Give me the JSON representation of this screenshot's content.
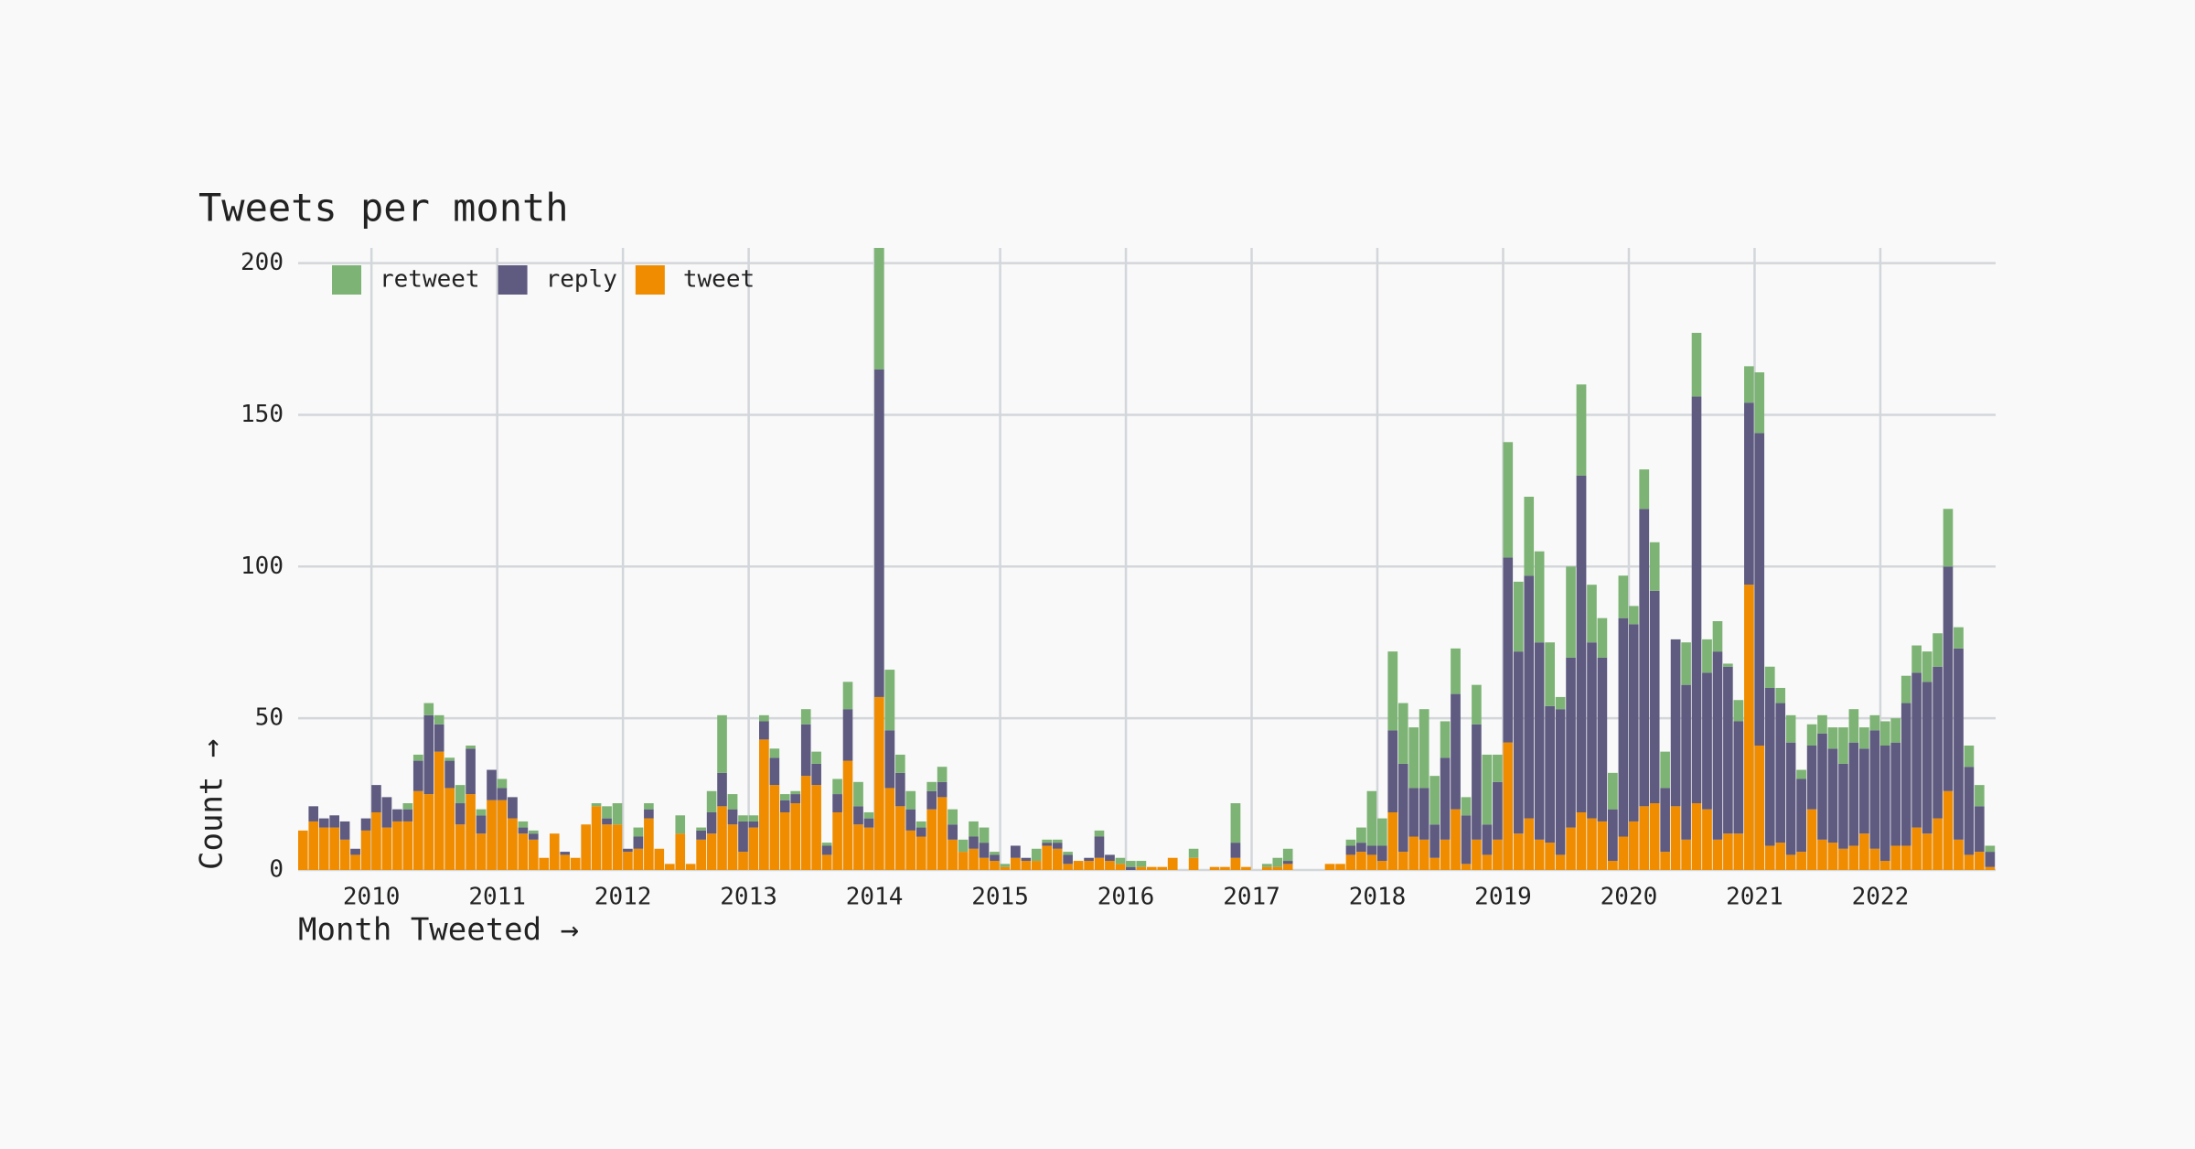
{
  "chart_data": {
    "type": "stacked_bar",
    "title": "Tweets per month",
    "x_label": "Month Tweeted →",
    "y_label": "Count →",
    "xlim": [
      2009.417,
      2022.917
    ],
    "xticks": [
      2010,
      2011,
      2012,
      2013,
      2014,
      2015,
      2016,
      2017,
      2018,
      2019,
      2020,
      2021,
      2022
    ],
    "ylim": [
      0,
      205
    ],
    "yticks": [
      0,
      50,
      100,
      150,
      200
    ],
    "grid": true,
    "legend": "top-left",
    "x": [
      2009.417,
      2009.5,
      2009.583,
      2009.667,
      2009.75,
      2009.833,
      2009.917,
      2010.0,
      2010.083,
      2010.167,
      2010.25,
      2010.333,
      2010.417,
      2010.5,
      2010.583,
      2010.667,
      2010.75,
      2010.833,
      2010.917,
      2011.0,
      2011.083,
      2011.167,
      2011.25,
      2011.333,
      2011.417,
      2011.5,
      2011.583,
      2011.667,
      2011.75,
      2011.833,
      2011.917,
      2012.0,
      2012.083,
      2012.167,
      2012.25,
      2012.333,
      2012.417,
      2012.5,
      2012.583,
      2012.667,
      2012.75,
      2012.833,
      2012.917,
      2013.0,
      2013.083,
      2013.167,
      2013.25,
      2013.333,
      2013.417,
      2013.5,
      2013.583,
      2013.667,
      2013.75,
      2013.833,
      2013.917,
      2014.0,
      2014.083,
      2014.167,
      2014.25,
      2014.333,
      2014.417,
      2014.5,
      2014.583,
      2014.667,
      2014.75,
      2014.833,
      2014.917,
      2015.0,
      2015.083,
      2015.167,
      2015.25,
      2015.333,
      2015.417,
      2015.5,
      2015.583,
      2015.667,
      2015.75,
      2015.833,
      2015.917,
      2016.0,
      2016.083,
      2016.167,
      2016.25,
      2016.333,
      2016.417,
      2016.5,
      2016.583,
      2016.667,
      2016.75,
      2016.833,
      2016.917,
      2017.0,
      2017.083,
      2017.167,
      2017.25,
      2017.333,
      2017.417,
      2017.5,
      2017.583,
      2017.667,
      2017.75,
      2017.833,
      2017.917,
      2018.0,
      2018.083,
      2018.167,
      2018.25,
      2018.333,
      2018.417,
      2018.5,
      2018.583,
      2018.667,
      2018.75,
      2018.833,
      2018.917,
      2019.0,
      2019.083,
      2019.167,
      2019.25,
      2019.333,
      2019.417,
      2019.5,
      2019.583,
      2019.667,
      2019.75,
      2019.833,
      2019.917,
      2020.0,
      2020.083,
      2020.167,
      2020.25,
      2020.333,
      2020.417,
      2020.5,
      2020.583,
      2020.667,
      2020.75,
      2020.833,
      2020.917,
      2021.0,
      2021.083,
      2021.167,
      2021.25,
      2021.333,
      2021.417,
      2021.5,
      2021.583,
      2021.667,
      2021.75,
      2021.833,
      2021.917,
      2022.0,
      2022.083,
      2022.167,
      2022.25,
      2022.333,
      2022.417,
      2022.5,
      2022.583,
      2022.667,
      2022.75,
      2022.833
    ],
    "series": [
      {
        "name": "retweet",
        "color": "#7db374",
        "values": [
          0,
          0,
          0,
          0,
          0,
          0,
          0,
          0,
          0,
          0,
          2,
          2,
          4,
          3,
          1,
          6,
          1,
          2,
          0,
          3,
          0,
          2,
          1,
          0,
          0,
          0,
          0,
          0,
          1,
          4,
          7,
          0,
          3,
          2,
          0,
          0,
          6,
          0,
          1,
          7,
          19,
          5,
          2,
          2,
          2,
          3,
          2,
          1,
          5,
          4,
          1,
          5,
          9,
          8,
          2,
          40,
          20,
          6,
          6,
          2,
          3,
          5,
          5,
          4,
          5,
          5,
          1,
          1,
          0,
          0,
          4,
          1,
          1,
          1,
          0,
          0,
          2,
          0,
          2,
          2,
          2,
          0,
          0,
          0,
          0,
          3,
          0,
          0,
          0,
          13,
          0,
          0,
          1,
          3,
          4,
          0,
          0,
          0,
          0,
          0,
          2,
          5,
          18,
          9,
          26,
          20,
          20,
          26,
          16,
          12,
          15,
          6,
          13,
          23,
          9,
          38,
          23,
          26,
          30,
          21,
          4,
          30,
          30,
          19,
          13,
          12,
          14,
          6,
          13,
          16,
          12,
          0,
          14,
          21,
          11,
          10,
          1,
          7,
          12,
          20,
          7,
          5,
          9,
          3,
          7,
          6,
          7,
          12,
          11,
          7,
          5,
          8,
          8,
          9,
          9,
          10,
          11,
          19,
          7,
          7,
          7,
          2
        ]
      },
      {
        "name": "reply",
        "color": "#5e5a80",
        "values": [
          0,
          5,
          3,
          4,
          6,
          2,
          4,
          9,
          10,
          4,
          4,
          10,
          26,
          9,
          9,
          7,
          15,
          6,
          10,
          4,
          7,
          2,
          2,
          0,
          0,
          1,
          0,
          0,
          0,
          2,
          0,
          1,
          4,
          3,
          0,
          0,
          0,
          0,
          3,
          7,
          11,
          5,
          10,
          2,
          6,
          9,
          4,
          3,
          17,
          7,
          3,
          6,
          17,
          6,
          3,
          108,
          19,
          11,
          7,
          3,
          6,
          5,
          5,
          0,
          4,
          5,
          2,
          0,
          4,
          1,
          0,
          1,
          2,
          3,
          0,
          1,
          7,
          2,
          0,
          1,
          0,
          0,
          0,
          0,
          0,
          0,
          0,
          0,
          0,
          5,
          0,
          0,
          0,
          0,
          1,
          0,
          0,
          0,
          0,
          0,
          3,
          3,
          3,
          5,
          27,
          29,
          16,
          17,
          11,
          27,
          38,
          16,
          38,
          10,
          19,
          61,
          60,
          80,
          65,
          45,
          48,
          56,
          111,
          58,
          54,
          17,
          72,
          65,
          98,
          70,
          21,
          55,
          51,
          134,
          45,
          62,
          55,
          37,
          60,
          103,
          52,
          46,
          37,
          24,
          21,
          35,
          31,
          28,
          34,
          28,
          39,
          38,
          34,
          47,
          51,
          50,
          50,
          74,
          63,
          29,
          15,
          5
        ]
      },
      {
        "name": "tweet",
        "color": "#f08c00",
        "values": [
          13,
          16,
          14,
          14,
          10,
          5,
          13,
          19,
          14,
          16,
          16,
          26,
          25,
          39,
          27,
          15,
          25,
          12,
          23,
          23,
          17,
          12,
          10,
          4,
          12,
          5,
          4,
          15,
          21,
          15,
          15,
          6,
          7,
          17,
          7,
          2,
          12,
          2,
          10,
          12,
          21,
          15,
          6,
          14,
          43,
          28,
          19,
          22,
          31,
          28,
          5,
          19,
          36,
          15,
          14,
          57,
          27,
          21,
          13,
          11,
          20,
          24,
          10,
          6,
          7,
          4,
          3,
          1,
          4,
          3,
          3,
          8,
          7,
          2,
          3,
          3,
          4,
          3,
          2,
          0,
          1,
          1,
          1,
          4,
          0,
          4,
          0,
          1,
          1,
          4,
          1,
          0,
          1,
          1,
          2,
          0,
          0,
          0,
          2,
          2,
          5,
          6,
          5,
          3,
          19,
          6,
          11,
          10,
          4,
          10,
          20,
          2,
          10,
          5,
          10,
          42,
          12,
          17,
          10,
          9,
          5,
          14,
          19,
          17,
          16,
          3,
          11,
          16,
          21,
          22,
          6,
          21,
          10,
          22,
          20,
          10,
          12,
          12,
          94,
          41,
          8,
          9,
          5,
          6,
          20,
          10,
          9,
          7,
          8,
          12,
          7,
          3,
          8,
          8,
          14,
          12,
          17,
          26,
          10,
          5,
          6,
          1
        ]
      }
    ]
  }
}
